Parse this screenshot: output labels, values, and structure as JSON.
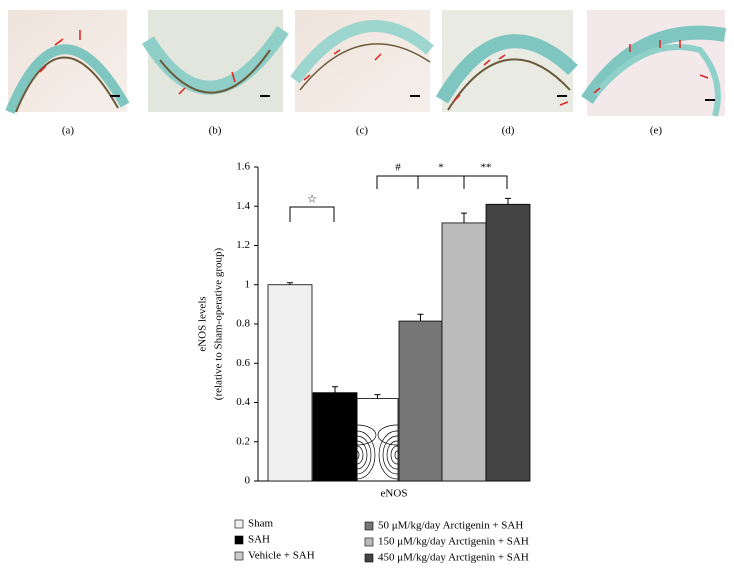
{
  "panels": [
    "(a)",
    "(b)",
    "(c)",
    "(d)",
    "(e)"
  ],
  "chart_data": {
    "type": "bar",
    "ylabel": [
      "eNOS levels",
      "(relative to Sham-operative group)"
    ],
    "categories": [
      "eNOS"
    ],
    "series": [
      {
        "name": "Sham",
        "color": "#f0f0f0",
        "values": [
          1.0
        ],
        "errors": [
          0.01
        ]
      },
      {
        "name": "SAH",
        "color": "#000000",
        "values": [
          0.45
        ],
        "errors": [
          0.03
        ]
      },
      {
        "name": "Vehicle + SAH",
        "color": "#ffffff",
        "hatch": "rings",
        "values": [
          0.42
        ],
        "errors": [
          0.02
        ]
      },
      {
        "name": "50 μM/kg/day Arctigenin + SAH",
        "color": "#777777",
        "values": [
          0.815
        ],
        "errors": [
          0.035
        ]
      },
      {
        "name": "150 μM/kg/day Arctigenin + SAH",
        "color": "#bbbbbb",
        "values": [
          1.315
        ],
        "errors": [
          0.05
        ]
      },
      {
        "name": "450 μM/kg/day Arctigenin + SAH",
        "color": "#444444",
        "values": [
          1.41
        ],
        "errors": [
          0.03
        ]
      }
    ],
    "annotations": [
      "☆",
      "#",
      "*",
      "**"
    ],
    "ylim": [
      0,
      1.6
    ],
    "yticks": [
      0,
      0.2,
      0.4,
      0.6,
      0.8,
      1,
      1.2,
      1.4,
      1.6
    ]
  }
}
